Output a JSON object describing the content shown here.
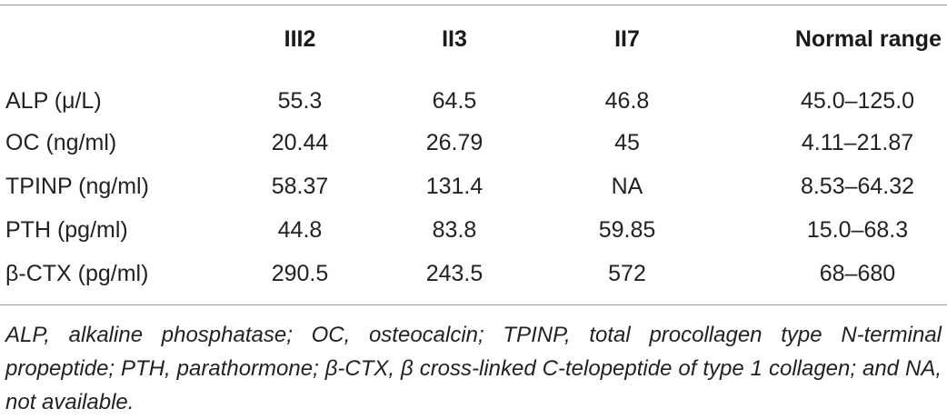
{
  "table": {
    "headers": [
      "",
      "III2",
      "II3",
      "II7",
      "Normal range"
    ],
    "rows": [
      {
        "label": "ALP (μ/L)",
        "values": [
          "55.3",
          "64.5",
          "46.8"
        ],
        "range": "45.0–125.0"
      },
      {
        "label": "OC (ng/ml)",
        "values": [
          "20.44",
          "26.79",
          "45"
        ],
        "range": "4.11–21.87"
      },
      {
        "label": "TPINP (ng/ml)",
        "values": [
          "58.37",
          "131.4",
          "NA"
        ],
        "range": "8.53–64.32"
      },
      {
        "label": "PTH (pg/ml)",
        "values": [
          "44.8",
          "83.8",
          "59.85"
        ],
        "range": "15.0–68.3"
      },
      {
        "label": "β-CTX (pg/ml)",
        "values": [
          "290.5",
          "243.5",
          "572"
        ],
        "range": "68–680"
      }
    ]
  },
  "footnote": "ALP, alkaline phosphatase; OC, osteocalcin; TPINP, total procollagen type N-terminal propeptide; PTH, parathormone; β-CTX, β cross-linked C-telopeptide of type 1 collagen; and NA, not available."
}
